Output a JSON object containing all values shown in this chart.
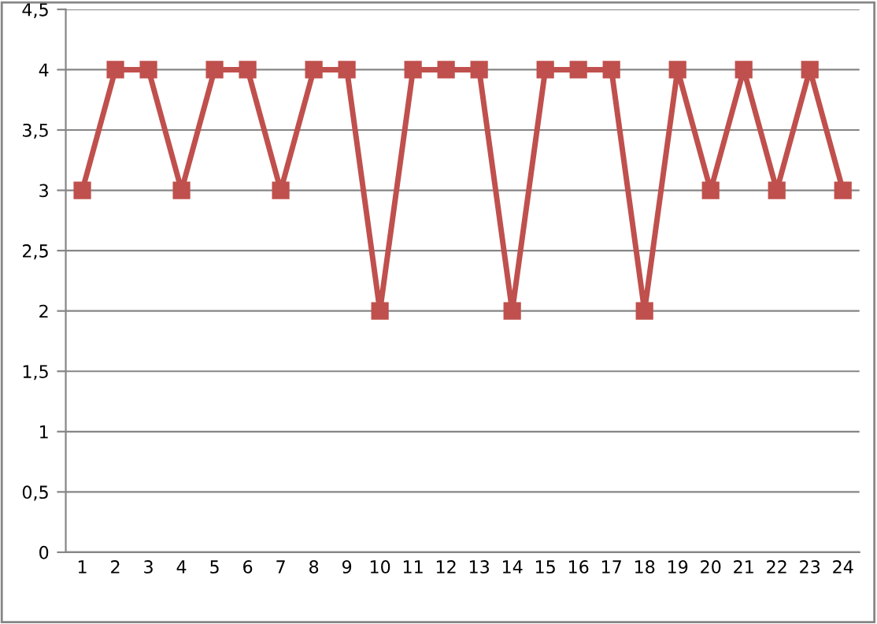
{
  "chart_data": {
    "type": "line",
    "categories": [
      "1",
      "2",
      "3",
      "4",
      "5",
      "6",
      "7",
      "8",
      "9",
      "10",
      "11",
      "12",
      "13",
      "14",
      "15",
      "16",
      "17",
      "18",
      "19",
      "20",
      "21",
      "22",
      "23",
      "24"
    ],
    "series": [
      {
        "color": "#c0504d",
        "values": [
          3,
          4,
          4,
          3,
          4,
          4,
          3,
          4,
          4,
          2,
          4,
          4,
          4,
          2,
          4,
          4,
          4,
          2,
          4,
          3,
          4,
          3,
          4,
          3
        ]
      }
    ],
    "ylim": [
      0,
      4.5
    ],
    "yticks": [
      0,
      {
        "value": 0.5,
        "label": "0,5"
      },
      1,
      {
        "value": 1.5,
        "label": "1,5"
      },
      2,
      {
        "value": 2.5,
        "label": "2,5"
      },
      3,
      {
        "value": 3.5,
        "label": "3,5"
      },
      4,
      {
        "value": 4.5,
        "label": "4,5"
      }
    ],
    "grid": "y",
    "marker": "square",
    "line_style": "solid",
    "legend": false
  }
}
